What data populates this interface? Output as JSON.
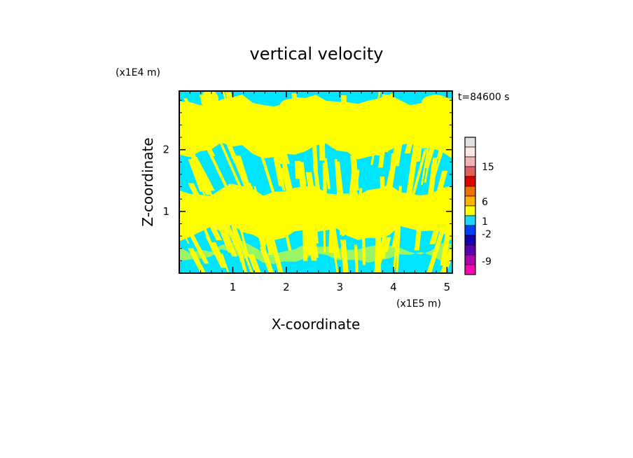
{
  "chart_data": {
    "type": "heatmap",
    "title": "vertical velocity",
    "xlabel": "X-coordinate",
    "ylabel": "Z-coordinate",
    "x_unit_label": "(x1E5 m)",
    "y_unit_label": "(x1E4 m)",
    "time_label": "t=84600 s",
    "xlim": [
      0,
      5.1
    ],
    "ylim": [
      0,
      2.95
    ],
    "x_ticks": [
      "1",
      "2",
      "3",
      "4",
      "5"
    ],
    "y_ticks": [
      "1",
      "2"
    ],
    "x_tick_values": [
      1,
      2,
      3,
      4,
      5
    ],
    "y_tick_values": [
      1,
      2
    ],
    "field_levels": [
      {
        "range": "w < 0",
        "color": "#00e5ff"
      },
      {
        "range": "w > 0",
        "color": "#ffff00"
      }
    ],
    "colorbar": {
      "labels": [
        "15",
        "6",
        "1",
        "-2",
        "-9"
      ],
      "colors": [
        "#e0e0e0",
        "#ffe6e6",
        "#f4b3b3",
        "#e06060",
        "#e00000",
        "#f07000",
        "#ffb000",
        "#ffff00",
        "#1ad9ff",
        "#0040ff",
        "#1a00b3",
        "#5a00b3",
        "#b300b3",
        "#ff00b3"
      ]
    }
  }
}
